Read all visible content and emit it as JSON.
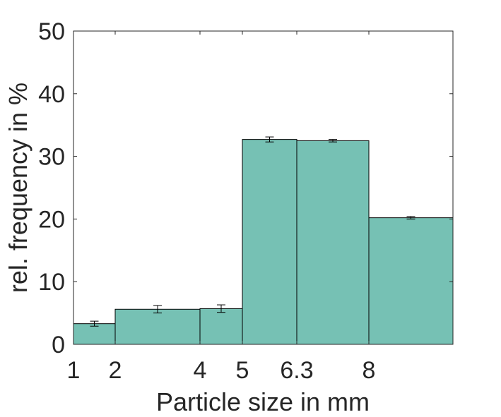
{
  "chart_data": {
    "type": "bar",
    "xlabel": "Particle size in mm",
    "ylabel": "rel. frequency in %",
    "ylim": [
      0,
      50
    ],
    "yticks": [
      0,
      10,
      20,
      30,
      40,
      50
    ],
    "xticks": [
      "1",
      "2",
      "4",
      "5",
      "6.3",
      "8"
    ],
    "bins": [
      {
        "from": "1",
        "to": "2",
        "value": 3.3,
        "error": 0.4
      },
      {
        "from": "2",
        "to": "4",
        "value": 5.6,
        "error": 0.6
      },
      {
        "from": "4",
        "to": "5",
        "value": 5.7,
        "error": 0.6
      },
      {
        "from": "5",
        "to": "6.3",
        "value": 32.7,
        "error": 0.4
      },
      {
        "from": "6.3",
        "to": "8",
        "value": 32.5,
        "error": 0.2
      },
      {
        "from": "8",
        "to": "",
        "value": 20.2,
        "error": 0.2
      }
    ],
    "bar_color": "#76c1b4",
    "edge_color": "#000000",
    "grid": false,
    "box": true,
    "legend": "none"
  }
}
